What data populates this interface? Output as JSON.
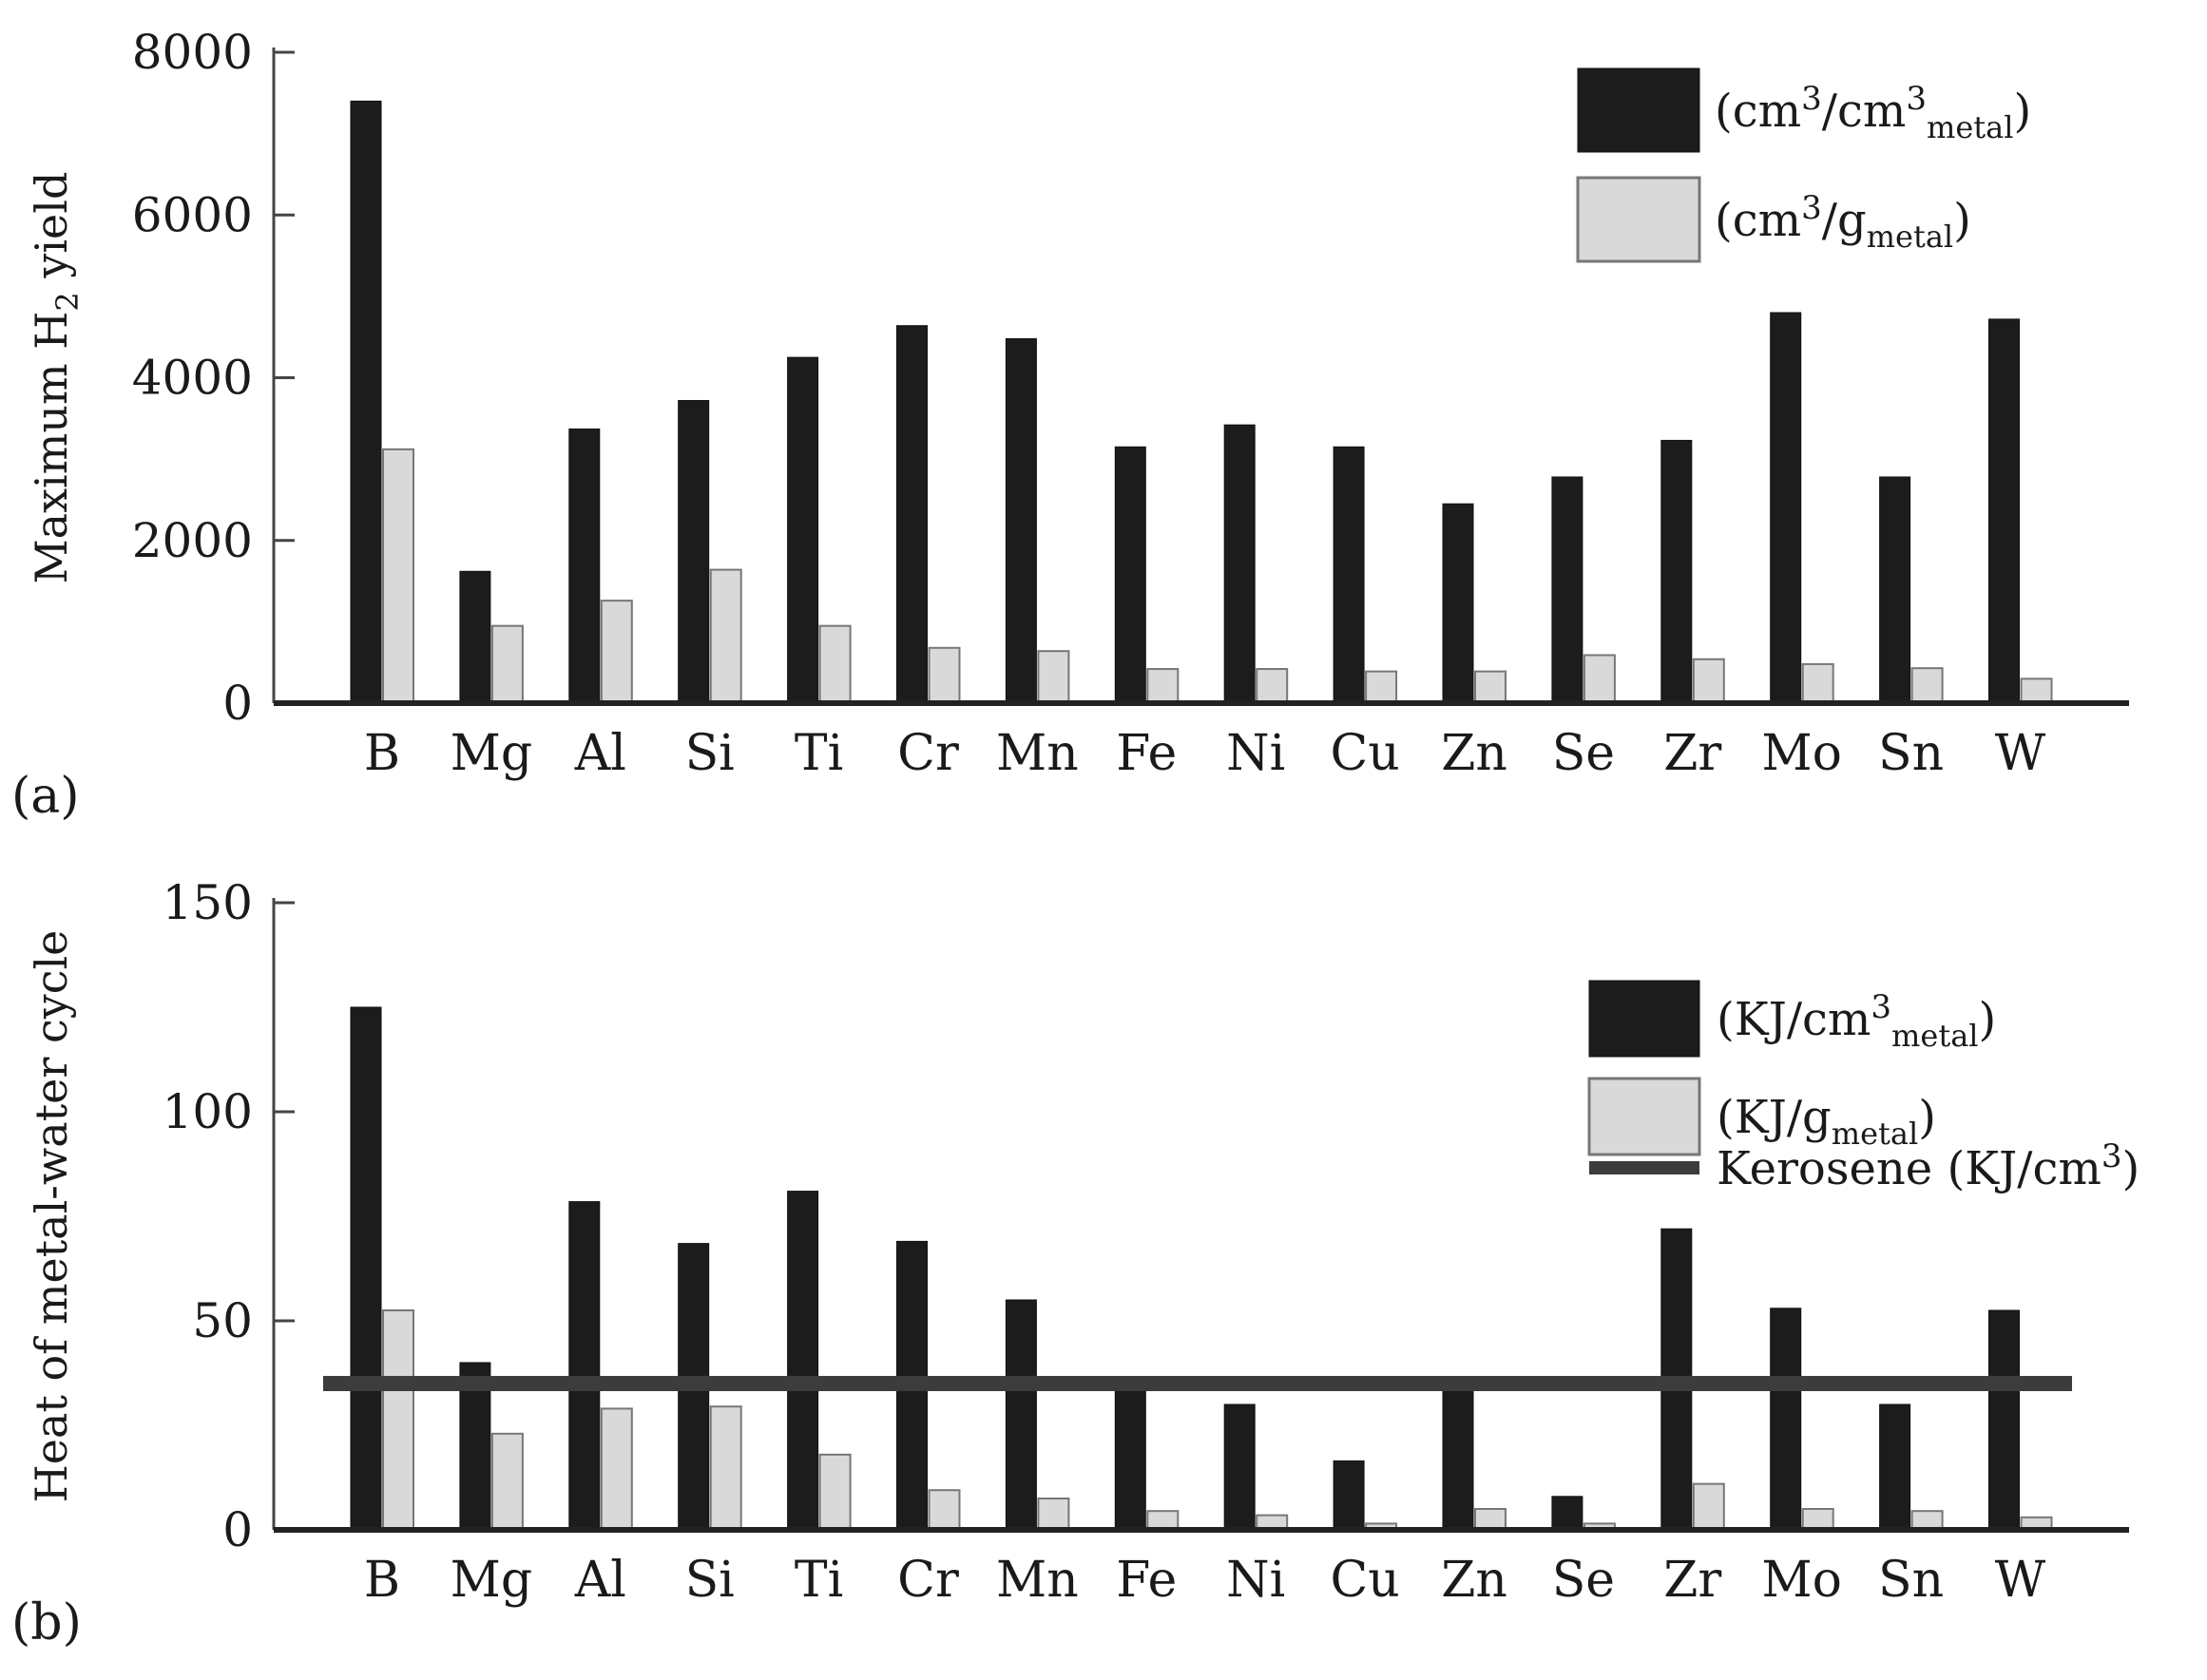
{
  "figure": {
    "panel_labels": [
      "(a)",
      "(b)"
    ]
  },
  "colors": {
    "dark": "#1c1c1c",
    "light": "#d9d9d9",
    "axis": "#444444",
    "kerosene": "#3c3c3c"
  },
  "chart_data": [
    {
      "type": "bar",
      "panel": "(a)",
      "ylabel": "Maximum H2 yield",
      "ylabel_parts": {
        "main": "Maximum H",
        "sub": "2",
        "tail": " yield"
      },
      "ylim": [
        0,
        8000
      ],
      "yticks": [
        0,
        2000,
        4000,
        6000,
        8000
      ],
      "grid": false,
      "legend_position": "top-right",
      "categories": [
        "B",
        "Mg",
        "Al",
        "Si",
        "Ti",
        "Cr",
        "Mn",
        "Fe",
        "Ni",
        "Cu",
        "Zn",
        "Se",
        "Zr",
        "Mo",
        "Sn",
        "W"
      ],
      "series": [
        {
          "name": "(cm3/cm3metal)",
          "legend_parts": {
            "a": "(cm",
            "sup": "3",
            "b": "/cm",
            "sup2": "3",
            "sub": "metal",
            "c": ")"
          },
          "color": "dark",
          "values": [
            7400,
            1620,
            3370,
            3720,
            4250,
            4640,
            4480,
            3150,
            3420,
            3150,
            2450,
            2780,
            3230,
            4800,
            2780,
            4720
          ]
        },
        {
          "name": "(cm3/gmetal)",
          "legend_parts": {
            "a": "(cm",
            "sup": "3",
            "b": "/g",
            "sub": "metal",
            "c": ")"
          },
          "color": "light",
          "values": [
            3120,
            950,
            1260,
            1640,
            950,
            680,
            640,
            420,
            420,
            390,
            390,
            590,
            540,
            480,
            430,
            300
          ]
        }
      ]
    },
    {
      "type": "bar",
      "panel": "(b)",
      "ylabel": "Heat of metal-water cycle",
      "ylim": [
        0,
        150
      ],
      "yticks": [
        0,
        50,
        100,
        150
      ],
      "grid": false,
      "legend_position": "top-right",
      "categories": [
        "B",
        "Mg",
        "Al",
        "Si",
        "Ti",
        "Cr",
        "Mn",
        "Fe",
        "Ni",
        "Cu",
        "Zn",
        "Se",
        "Zr",
        "Mo",
        "Sn",
        "W"
      ],
      "series": [
        {
          "name": "(KJ/cm3metal)",
          "legend_parts": {
            "a": "(KJ/cm",
            "sup": "3",
            "sub": "metal",
            "c": ")"
          },
          "color": "dark",
          "values": [
            125,
            40,
            78.5,
            68.5,
            81,
            69,
            55,
            34,
            30,
            16.5,
            34,
            8,
            72,
            53,
            30,
            52.5
          ]
        },
        {
          "name": "(KJ/gmetal)",
          "legend_parts": {
            "a": "(KJ/g",
            "sub": "metal",
            "c": ")"
          },
          "color": "light",
          "values": [
            52.5,
            23,
            29,
            29.5,
            18,
            9.5,
            7.5,
            4.5,
            3.5,
            1.5,
            5,
            1.5,
            11,
            5,
            4.5,
            3
          ]
        }
      ],
      "reference_line": {
        "name": "Kerosene (KJ/cm3)",
        "legend_parts": {
          "a": "Kerosene (KJ/cm",
          "sup": "3",
          "c": ")"
        },
        "value": 35
      }
    }
  ]
}
